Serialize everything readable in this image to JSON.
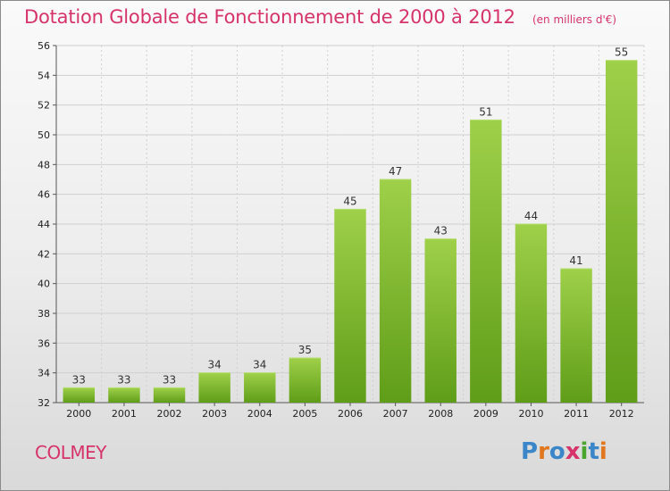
{
  "header": {
    "title": "Dotation Globale de Fonctionnement de 2000 à 2012",
    "unit": "(en milliers d'€)"
  },
  "footer": {
    "commune": "COLMEY",
    "logo_letters": [
      "P",
      "r",
      "o",
      "x",
      "i",
      "t",
      "i"
    ],
    "logo_colors": [
      "#3a86c8",
      "#e0761d",
      "#3a86c8",
      "#d6336b",
      "#4aa52e",
      "#3a86c8",
      "#e0761d"
    ]
  },
  "colors": {
    "title": "#d6336b",
    "bar_top": "#9fd04a",
    "bar_bottom": "#5f9d18",
    "grid": "#cfcfcf"
  },
  "chart_data": {
    "type": "bar",
    "title": "Dotation Globale de Fonctionnement de 2000 à 2012",
    "subtitle": "(en milliers d'€)",
    "categories": [
      "2000",
      "2001",
      "2002",
      "2003",
      "2004",
      "2005",
      "2006",
      "2007",
      "2008",
      "2009",
      "2010",
      "2011",
      "2012"
    ],
    "values": [
      33,
      33,
      33,
      34,
      34,
      35,
      45,
      47,
      43,
      51,
      44,
      41,
      55
    ],
    "ylim": [
      32,
      56
    ],
    "yticks": [
      32,
      34,
      36,
      38,
      40,
      42,
      44,
      46,
      48,
      50,
      52,
      54,
      56
    ],
    "grid": true,
    "xlabel": "",
    "ylabel": ""
  }
}
